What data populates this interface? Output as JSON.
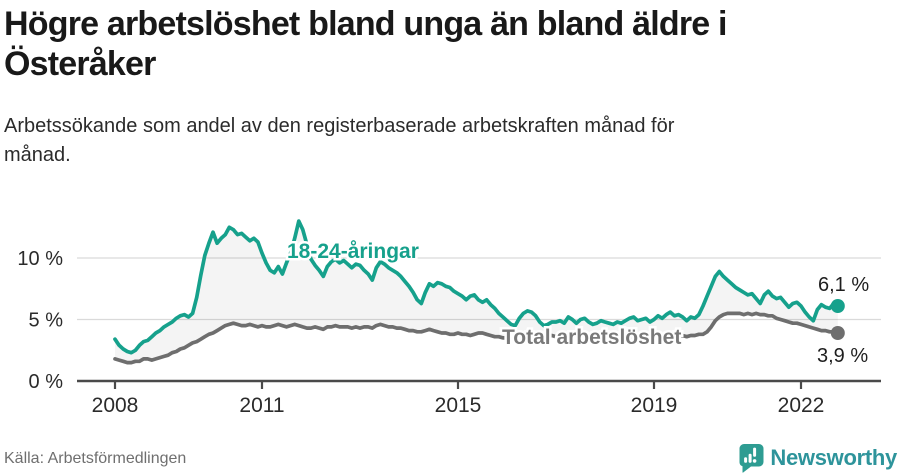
{
  "title": {
    "line1": "Högre arbetslöshet bland unga än bland äldre i",
    "line2": "Österåker"
  },
  "subtitle": {
    "line1": "Arbetssökande som andel av den registerbaserade arbetskraften månad för",
    "line2": "månad."
  },
  "source": "Källa: Arbetsförmedlingen",
  "brand": {
    "name": "Newsworthy",
    "icon": "newsworthy-bar-chart-badge-icon",
    "color": "#2e949b"
  },
  "colors": {
    "youth_line": "#16A18C",
    "total_line": "#6E6E6E",
    "total_label": "#7A7A7A",
    "fill_between": "rgba(40,40,40,0.05)",
    "gridline": "#DADADA",
    "axis": "#4A4A4A",
    "end_label_text": "#1E1E1E"
  },
  "chart_data": {
    "type": "line",
    "title": "Högre arbetslöshet bland unga än bland äldre i Österåker",
    "subtitle": "Arbetssökande som andel av den registerbaserade arbetskraften månad för månad.",
    "unit": "%",
    "frequency": "monthly",
    "x_start": "2008-01",
    "x_end": "2022-10",
    "x_tick_labels": [
      "2008",
      "2011",
      "2015",
      "2019",
      "2022"
    ],
    "x_tick_years": [
      2008,
      2011,
      2015,
      2019,
      2022
    ],
    "y_tick_labels": [
      "10 %",
      "5 %",
      "0 %"
    ],
    "y_ticks": [
      10,
      5,
      0
    ],
    "ylim": [
      0,
      13.5
    ],
    "grid": true,
    "legend_position": "inline-labels",
    "series": [
      {
        "name": "18-24-åringar",
        "color": "#16A18C",
        "end_label": "6,1 %",
        "end_value": 6.1,
        "values": [
          3.4,
          2.9,
          2.6,
          2.4,
          2.3,
          2.5,
          2.9,
          3.2,
          3.3,
          3.6,
          3.9,
          4.1,
          4.4,
          4.6,
          4.8,
          5.1,
          5.3,
          5.4,
          5.2,
          5.5,
          6.8,
          8.6,
          10.2,
          11.2,
          12.1,
          11.2,
          11.6,
          11.9,
          12.5,
          12.3,
          11.9,
          12.0,
          11.7,
          11.4,
          11.6,
          11.3,
          10.4,
          9.6,
          9.0,
          8.8,
          9.3,
          8.7,
          9.6,
          10.4,
          11.6,
          13.0,
          12.3,
          11.1,
          9.9,
          9.4,
          9.0,
          8.5,
          9.3,
          9.7,
          9.9,
          9.6,
          9.8,
          9.5,
          9.2,
          9.5,
          9.4,
          9.0,
          8.7,
          8.2,
          9.2,
          9.7,
          9.5,
          9.2,
          9.0,
          8.8,
          8.5,
          8.1,
          7.7,
          7.2,
          6.6,
          6.3,
          7.2,
          7.9,
          7.7,
          8.0,
          7.9,
          7.7,
          7.6,
          7.3,
          7.1,
          6.9,
          6.6,
          6.9,
          7.0,
          6.6,
          6.4,
          6.6,
          6.2,
          5.9,
          5.5,
          5.2,
          4.9,
          4.6,
          4.5,
          5.1,
          5.5,
          5.7,
          5.6,
          5.3,
          4.8,
          4.5,
          4.6,
          4.8,
          4.8,
          4.9,
          4.7,
          5.2,
          5.0,
          4.7,
          5.0,
          5.1,
          4.8,
          4.6,
          4.7,
          4.9,
          4.8,
          4.7,
          4.6,
          4.8,
          4.7,
          4.9,
          5.1,
          5.2,
          4.9,
          5.0,
          5.1,
          4.8,
          5.0,
          5.3,
          5.1,
          5.4,
          5.6,
          5.3,
          5.4,
          5.2,
          4.9,
          5.2,
          5.1,
          5.4,
          6.1,
          6.9,
          7.7,
          8.5,
          8.9,
          8.5,
          8.2,
          7.9,
          7.6,
          7.4,
          7.2,
          7.0,
          7.1,
          6.7,
          6.3,
          7.0,
          7.3,
          6.9,
          6.7,
          6.8,
          6.4,
          6.0,
          6.3,
          6.4,
          6.1,
          5.6,
          5.2,
          4.9,
          5.8,
          6.2,
          6.0,
          5.9,
          6.3,
          6.1
        ]
      },
      {
        "name": "Total arbetslöshet",
        "color": "#6E6E6E",
        "end_label": "3,9 %",
        "end_value": 3.9,
        "values": [
          1.8,
          1.7,
          1.6,
          1.5,
          1.5,
          1.6,
          1.6,
          1.8,
          1.8,
          1.7,
          1.8,
          1.9,
          2.0,
          2.1,
          2.3,
          2.4,
          2.6,
          2.7,
          2.9,
          3.1,
          3.2,
          3.4,
          3.6,
          3.8,
          3.9,
          4.1,
          4.3,
          4.5,
          4.6,
          4.7,
          4.6,
          4.5,
          4.5,
          4.6,
          4.5,
          4.4,
          4.5,
          4.4,
          4.4,
          4.5,
          4.6,
          4.5,
          4.4,
          4.5,
          4.6,
          4.5,
          4.4,
          4.3,
          4.3,
          4.4,
          4.3,
          4.2,
          4.4,
          4.4,
          4.5,
          4.4,
          4.4,
          4.4,
          4.3,
          4.4,
          4.3,
          4.4,
          4.4,
          4.3,
          4.5,
          4.6,
          4.5,
          4.4,
          4.4,
          4.3,
          4.3,
          4.2,
          4.1,
          4.1,
          4.0,
          4.0,
          4.1,
          4.2,
          4.1,
          4.0,
          3.9,
          3.9,
          3.8,
          3.8,
          3.9,
          3.8,
          3.8,
          3.7,
          3.8,
          3.9,
          3.9,
          3.8,
          3.7,
          3.6,
          3.6,
          3.5,
          3.5,
          3.6,
          3.6,
          3.7,
          3.7,
          3.8,
          3.7,
          3.7,
          3.6,
          3.6,
          3.6,
          3.7,
          3.6,
          3.7,
          3.7,
          3.8,
          3.7,
          3.7,
          3.7,
          3.8,
          3.7,
          3.6,
          3.6,
          3.6,
          3.5,
          3.5,
          3.5,
          3.5,
          3.6,
          3.5,
          3.6,
          3.6,
          3.5,
          3.5,
          3.5,
          3.6,
          3.5,
          3.6,
          3.6,
          3.7,
          3.6,
          3.6,
          3.6,
          3.7,
          3.6,
          3.7,
          3.7,
          3.8,
          3.8,
          4.0,
          4.4,
          4.9,
          5.2,
          5.4,
          5.5,
          5.5,
          5.5,
          5.5,
          5.4,
          5.5,
          5.4,
          5.5,
          5.4,
          5.4,
          5.3,
          5.3,
          5.1,
          5.0,
          4.9,
          4.8,
          4.7,
          4.7,
          4.6,
          4.5,
          4.4,
          4.3,
          4.2,
          4.1,
          4.1,
          4.0,
          4.0,
          3.9
        ]
      }
    ]
  }
}
